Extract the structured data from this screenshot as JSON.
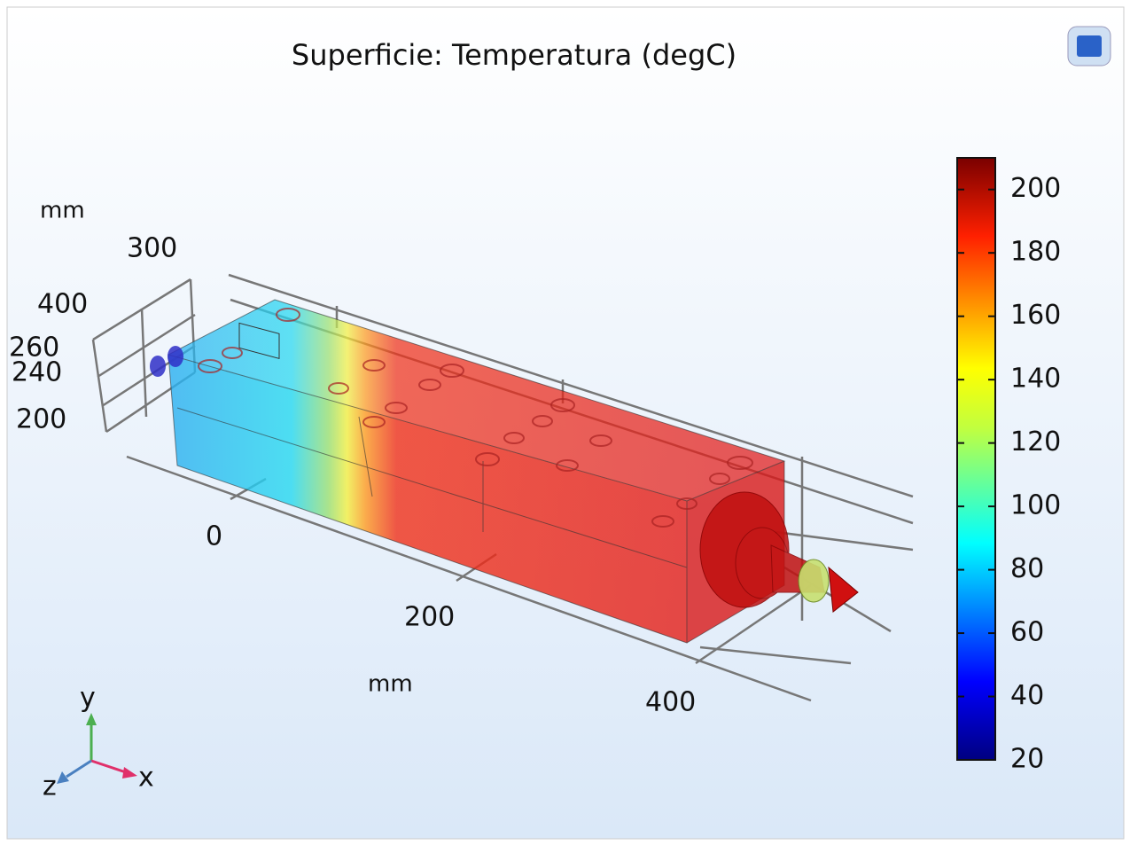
{
  "title": "Superficie: Temperatura (degC)",
  "axis_labels": [
    "mm",
    "300",
    "400",
    "260",
    "240",
    "200",
    "0",
    "200",
    "mm",
    "400"
  ],
  "colorbar": {
    "range": [
      20,
      210
    ],
    "ticks": [
      20,
      40,
      60,
      80,
      100,
      120,
      140,
      160,
      180,
      200
    ]
  },
  "triad": {
    "y": "y",
    "x": "x",
    "z": "z"
  }
}
